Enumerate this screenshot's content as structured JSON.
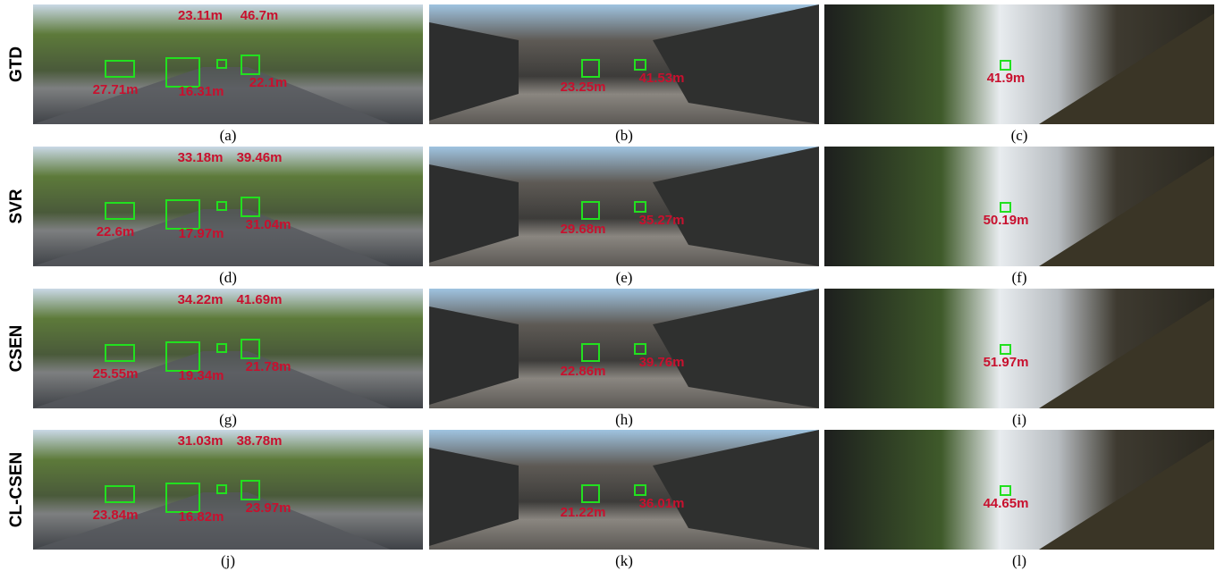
{
  "rows": [
    {
      "label": "GTD",
      "panels": [
        {
          "caption": "(a)",
          "distances": [
            "23.11m",
            "46.7m",
            "27.71m",
            "16.31m",
            "22.1m"
          ]
        },
        {
          "caption": "(b)",
          "distances": [
            "23.25m",
            "41.53m"
          ]
        },
        {
          "caption": "(c)",
          "distances": [
            "41.9m"
          ]
        }
      ]
    },
    {
      "label": "SVR",
      "panels": [
        {
          "caption": "(d)",
          "distances": [
            "33.18m",
            "39.46m",
            "22.6m",
            "17.97m",
            "31.04m"
          ]
        },
        {
          "caption": "(e)",
          "distances": [
            "29.68m",
            "35.27m"
          ]
        },
        {
          "caption": "(f)",
          "distances": [
            "50.19m"
          ]
        }
      ]
    },
    {
      "label": "CSEN",
      "panels": [
        {
          "caption": "(g)",
          "distances": [
            "34.22m",
            "41.69m",
            "25.55m",
            "19.34m",
            "21.78m"
          ]
        },
        {
          "caption": "(h)",
          "distances": [
            "22.86m",
            "39.76m"
          ]
        },
        {
          "caption": "(i)",
          "distances": [
            "51.97m"
          ]
        }
      ]
    },
    {
      "label": "CL-CSEN",
      "panels": [
        {
          "caption": "(j)",
          "distances": [
            "31.03m",
            "38.78m",
            "23.84m",
            "16.82m",
            "23.97m"
          ]
        },
        {
          "caption": "(k)",
          "distances": [
            "21.22m",
            "36.01m"
          ]
        },
        {
          "caption": "(l)",
          "distances": [
            "44.65m"
          ]
        }
      ]
    }
  ]
}
